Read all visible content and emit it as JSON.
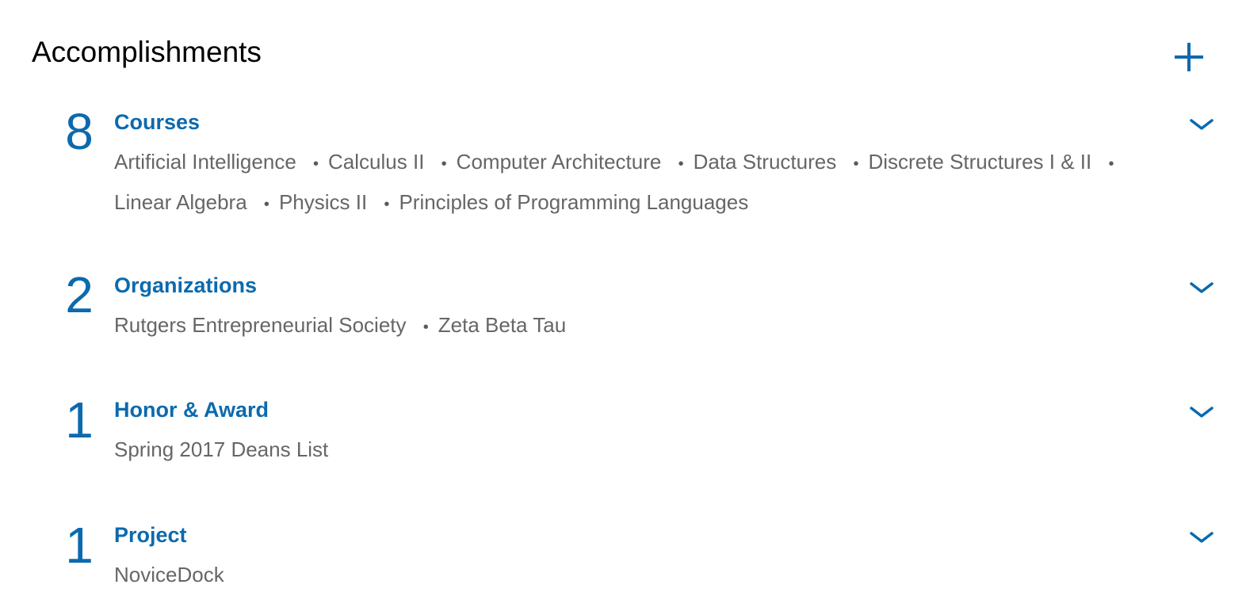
{
  "header": {
    "title": "Accomplishments",
    "add_icon": "plus-icon",
    "accent_color": "#0b6aae"
  },
  "categories": [
    {
      "count": "8",
      "title": "Courses",
      "entries": [
        "Artificial Intelligence",
        "Calculus II",
        "Computer Architecture",
        "Data Structures",
        "Discrete Structures I & II",
        "Linear Algebra",
        "Physics II",
        "Principles of Programming Languages"
      ],
      "expand_icon": "chevron-down-icon"
    },
    {
      "count": "2",
      "title": "Organizations",
      "entries": [
        "Rutgers Entrepreneurial Society",
        "Zeta Beta Tau"
      ],
      "expand_icon": "chevron-down-icon"
    },
    {
      "count": "1",
      "title": "Honor & Award",
      "entries": [
        "Spring 2017 Deans List"
      ],
      "expand_icon": "chevron-down-icon"
    },
    {
      "count": "1",
      "title": "Project",
      "entries": [
        "NoviceDock"
      ],
      "expand_icon": "chevron-down-icon"
    }
  ]
}
